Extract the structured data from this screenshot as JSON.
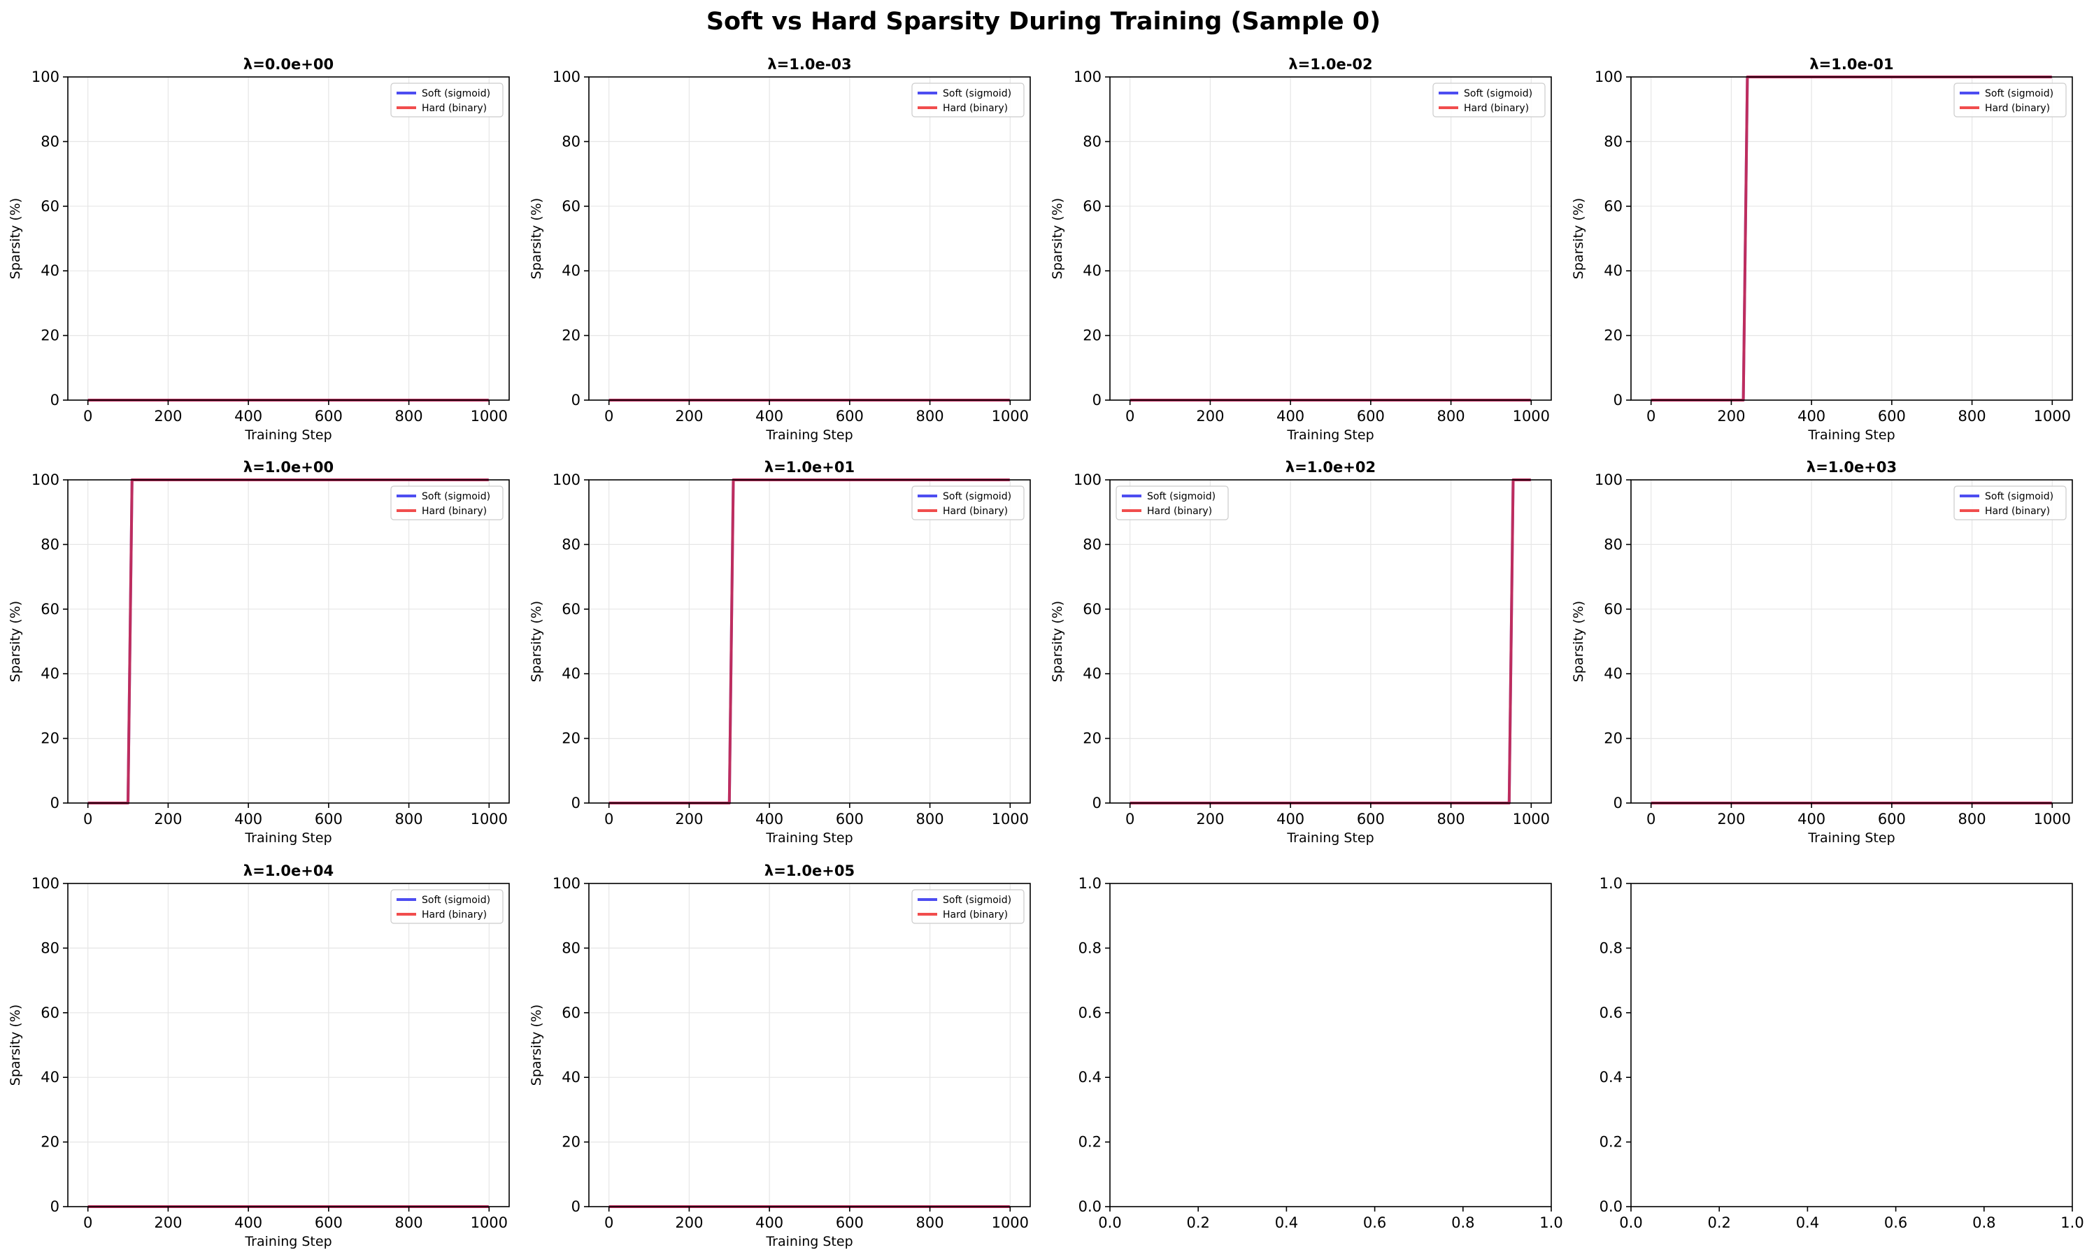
{
  "figure_title": "Soft vs Hard Sparsity During Training (Sample 0)",
  "colors": {
    "soft": "#2020ee",
    "hard": "#ee2020",
    "overlap": "#c8104e",
    "grid": "#e6e6e6"
  },
  "chart_data": [
    {
      "type": "line",
      "title": "λ=0.0e+00",
      "xlabel": "Training Step",
      "ylabel": "Sparsity (%)",
      "xlim": [
        -50,
        1050
      ],
      "ylim": [
        0,
        100
      ],
      "xticks": [
        "0",
        "200",
        "400",
        "600",
        "800",
        "1000"
      ],
      "yticks": [
        "0",
        "20",
        "40",
        "60",
        "80",
        "100"
      ],
      "grid": true,
      "legend_position": "upper right",
      "series": [
        {
          "name": "Soft (sigmoid)",
          "x": [
            0,
            999
          ],
          "y": [
            0,
            0
          ]
        },
        {
          "name": "Hard (binary)",
          "x": [
            0,
            999
          ],
          "y": [
            0,
            0
          ]
        }
      ]
    },
    {
      "type": "line",
      "title": "λ=1.0e-03",
      "xlabel": "Training Step",
      "ylabel": "Sparsity (%)",
      "xlim": [
        -50,
        1050
      ],
      "ylim": [
        0,
        100
      ],
      "xticks": [
        "0",
        "200",
        "400",
        "600",
        "800",
        "1000"
      ],
      "yticks": [
        "0",
        "20",
        "40",
        "60",
        "80",
        "100"
      ],
      "grid": true,
      "legend_position": "upper right",
      "series": [
        {
          "name": "Soft (sigmoid)",
          "x": [
            0,
            999
          ],
          "y": [
            0,
            0
          ]
        },
        {
          "name": "Hard (binary)",
          "x": [
            0,
            999
          ],
          "y": [
            0,
            0
          ]
        }
      ]
    },
    {
      "type": "line",
      "title": "λ=1.0e-02",
      "xlabel": "Training Step",
      "ylabel": "Sparsity (%)",
      "xlim": [
        -50,
        1050
      ],
      "ylim": [
        0,
        100
      ],
      "xticks": [
        "0",
        "200",
        "400",
        "600",
        "800",
        "1000"
      ],
      "yticks": [
        "0",
        "20",
        "40",
        "60",
        "80",
        "100"
      ],
      "grid": true,
      "legend_position": "upper right",
      "series": [
        {
          "name": "Soft (sigmoid)",
          "x": [
            0,
            999
          ],
          "y": [
            0,
            0
          ]
        },
        {
          "name": "Hard (binary)",
          "x": [
            0,
            999
          ],
          "y": [
            0,
            0
          ]
        }
      ]
    },
    {
      "type": "line",
      "title": "λ=1.0e-01",
      "xlabel": "Training Step",
      "ylabel": "Sparsity (%)",
      "xlim": [
        -50,
        1050
      ],
      "ylim": [
        0,
        100
      ],
      "xticks": [
        "0",
        "200",
        "400",
        "600",
        "800",
        "1000"
      ],
      "yticks": [
        "0",
        "20",
        "40",
        "60",
        "80",
        "100"
      ],
      "grid": true,
      "legend_position": "upper right",
      "series": [
        {
          "name": "Soft (sigmoid)",
          "x": [
            0,
            230,
            240,
            999
          ],
          "y": [
            0,
            0,
            100,
            100
          ]
        },
        {
          "name": "Hard (binary)",
          "x": [
            0,
            230,
            240,
            999
          ],
          "y": [
            0,
            0,
            100,
            100
          ]
        }
      ]
    },
    {
      "type": "line",
      "title": "λ=1.0e+00",
      "xlabel": "Training Step",
      "ylabel": "Sparsity (%)",
      "xlim": [
        -50,
        1050
      ],
      "ylim": [
        0,
        100
      ],
      "xticks": [
        "0",
        "200",
        "400",
        "600",
        "800",
        "1000"
      ],
      "yticks": [
        "0",
        "20",
        "40",
        "60",
        "80",
        "100"
      ],
      "grid": true,
      "legend_position": "upper right",
      "series": [
        {
          "name": "Soft (sigmoid)",
          "x": [
            0,
            100,
            110,
            999
          ],
          "y": [
            0,
            0,
            100,
            100
          ]
        },
        {
          "name": "Hard (binary)",
          "x": [
            0,
            100,
            110,
            999
          ],
          "y": [
            0,
            0,
            100,
            100
          ]
        }
      ]
    },
    {
      "type": "line",
      "title": "λ=1.0e+01",
      "xlabel": "Training Step",
      "ylabel": "Sparsity (%)",
      "xlim": [
        -50,
        1050
      ],
      "ylim": [
        0,
        100
      ],
      "xticks": [
        "0",
        "200",
        "400",
        "600",
        "800",
        "1000"
      ],
      "yticks": [
        "0",
        "20",
        "40",
        "60",
        "80",
        "100"
      ],
      "grid": true,
      "legend_position": "upper right",
      "series": [
        {
          "name": "Soft (sigmoid)",
          "x": [
            0,
            300,
            310,
            999
          ],
          "y": [
            0,
            0,
            100,
            100
          ]
        },
        {
          "name": "Hard (binary)",
          "x": [
            0,
            300,
            310,
            999
          ],
          "y": [
            0,
            0,
            100,
            100
          ]
        }
      ]
    },
    {
      "type": "line",
      "title": "λ=1.0e+02",
      "xlabel": "Training Step",
      "ylabel": "Sparsity (%)",
      "xlim": [
        -50,
        1050
      ],
      "ylim": [
        0,
        100
      ],
      "xticks": [
        "0",
        "200",
        "400",
        "600",
        "800",
        "1000"
      ],
      "yticks": [
        "0",
        "20",
        "40",
        "60",
        "80",
        "100"
      ],
      "grid": true,
      "legend_position": "upper left",
      "series": [
        {
          "name": "Soft (sigmoid)",
          "x": [
            0,
            945,
            955,
            999
          ],
          "y": [
            0,
            0,
            100,
            100
          ]
        },
        {
          "name": "Hard (binary)",
          "x": [
            0,
            945,
            955,
            999
          ],
          "y": [
            0,
            0,
            100,
            100
          ]
        }
      ]
    },
    {
      "type": "line",
      "title": "λ=1.0e+03",
      "xlabel": "Training Step",
      "ylabel": "Sparsity (%)",
      "xlim": [
        -50,
        1050
      ],
      "ylim": [
        0,
        100
      ],
      "xticks": [
        "0",
        "200",
        "400",
        "600",
        "800",
        "1000"
      ],
      "yticks": [
        "0",
        "20",
        "40",
        "60",
        "80",
        "100"
      ],
      "grid": true,
      "legend_position": "upper right",
      "series": [
        {
          "name": "Soft (sigmoid)",
          "x": [
            0,
            999
          ],
          "y": [
            0,
            0
          ]
        },
        {
          "name": "Hard (binary)",
          "x": [
            0,
            999
          ],
          "y": [
            0,
            0
          ]
        }
      ]
    },
    {
      "type": "line",
      "title": "λ=1.0e+04",
      "xlabel": "Training Step",
      "ylabel": "Sparsity (%)",
      "xlim": [
        -50,
        1050
      ],
      "ylim": [
        0,
        100
      ],
      "xticks": [
        "0",
        "200",
        "400",
        "600",
        "800",
        "1000"
      ],
      "yticks": [
        "0",
        "20",
        "40",
        "60",
        "80",
        "100"
      ],
      "grid": true,
      "legend_position": "upper right",
      "series": [
        {
          "name": "Soft (sigmoid)",
          "x": [
            0,
            999
          ],
          "y": [
            0,
            0
          ]
        },
        {
          "name": "Hard (binary)",
          "x": [
            0,
            999
          ],
          "y": [
            0,
            0
          ]
        }
      ]
    },
    {
      "type": "line",
      "title": "λ=1.0e+05",
      "xlabel": "Training Step",
      "ylabel": "Sparsity (%)",
      "xlim": [
        -50,
        1050
      ],
      "ylim": [
        0,
        100
      ],
      "xticks": [
        "0",
        "200",
        "400",
        "600",
        "800",
        "1000"
      ],
      "yticks": [
        "0",
        "20",
        "40",
        "60",
        "80",
        "100"
      ],
      "grid": true,
      "legend_position": "upper right",
      "series": [
        {
          "name": "Soft (sigmoid)",
          "x": [
            0,
            999
          ],
          "y": [
            0,
            0
          ]
        },
        {
          "name": "Hard (binary)",
          "x": [
            0,
            999
          ],
          "y": [
            0,
            0
          ]
        }
      ]
    },
    {
      "type": "line",
      "title": "",
      "xlabel": "",
      "ylabel": "",
      "empty": true,
      "xlim": [
        0,
        1
      ],
      "ylim": [
        0,
        1
      ],
      "xticks": [
        "0.0",
        "0.2",
        "0.4",
        "0.6",
        "0.8",
        "1.0"
      ],
      "yticks": [
        "0.0",
        "0.2",
        "0.4",
        "0.6",
        "0.8",
        "1.0"
      ],
      "grid": false,
      "series": []
    },
    {
      "type": "line",
      "title": "",
      "xlabel": "",
      "ylabel": "",
      "empty": true,
      "xlim": [
        0,
        1
      ],
      "ylim": [
        0,
        1
      ],
      "xticks": [
        "0.0",
        "0.2",
        "0.4",
        "0.6",
        "0.8",
        "1.0"
      ],
      "yticks": [
        "0.0",
        "0.2",
        "0.4",
        "0.6",
        "0.8",
        "1.0"
      ],
      "grid": false,
      "series": []
    }
  ]
}
